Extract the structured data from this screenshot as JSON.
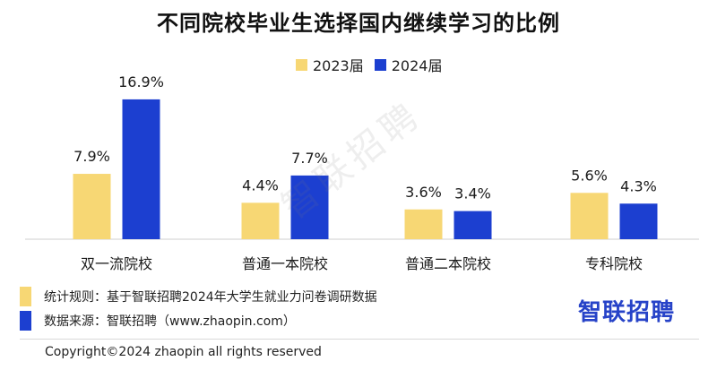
{
  "title": "不同院校毕业生选择国内继续学习的比例",
  "legend": {
    "items": [
      {
        "label": "2023届",
        "color": "#f7d774"
      },
      {
        "label": "2024届",
        "color": "#1c3fd0"
      }
    ]
  },
  "chart_data": {
    "type": "bar",
    "title": "不同院校毕业生选择国内继续学习的比例",
    "categories": [
      "双一流院校",
      "普通一本院校",
      "普通二本院校",
      "专科院校"
    ],
    "series": [
      {
        "name": "2023届",
        "values": [
          7.9,
          4.4,
          3.6,
          5.6
        ],
        "labels": [
          "7.9%",
          "4.4%",
          "3.6%",
          "5.6%"
        ],
        "color": "#f7d774"
      },
      {
        "name": "2024届",
        "values": [
          16.9,
          7.7,
          3.4,
          4.3
        ],
        "labels": [
          "16.9%",
          "7.7%",
          "3.4%",
          "4.3%"
        ],
        "color": "#1c3fd0"
      }
    ],
    "ylim": [
      0,
      17
    ],
    "grid": false,
    "legend_position": "top-center"
  },
  "notes": {
    "rule_label": "统计规则：基于智联招聘2024年大学生就业力问卷调研数据",
    "source_label": "数据来源：智联招聘（www.zhaopin.com）"
  },
  "brand": "智联招聘",
  "watermark": "智联招聘",
  "copyright": "Copyright©2024 zhaopin all rights reserved"
}
